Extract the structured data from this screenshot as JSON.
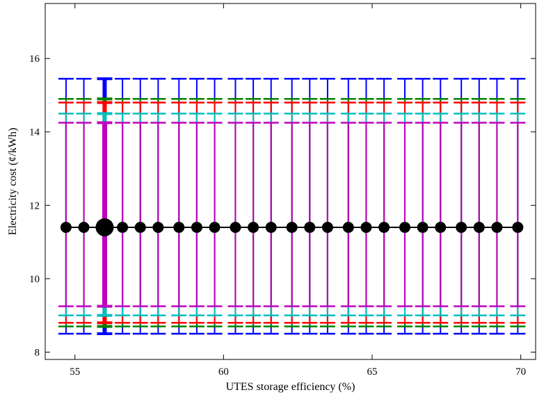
{
  "chart_data": {
    "type": "scatter",
    "title": "",
    "xlabel": "UTES storage efficiency (%)",
    "ylabel": "Electricity cost (¢/kWh)",
    "xlim": [
      54,
      70.5
    ],
    "ylim": [
      7.8,
      17.5
    ],
    "xticks": [
      55,
      60,
      65,
      70
    ],
    "yticks": [
      8,
      10,
      12,
      14,
      16
    ],
    "grid": false,
    "x": [
      54.7,
      55.3,
      56.0,
      56.6,
      57.2,
      57.8,
      58.5,
      59.1,
      59.7,
      60.4,
      61.0,
      61.6,
      62.3,
      62.9,
      63.5,
      64.2,
      64.8,
      65.4,
      66.1,
      66.7,
      67.3,
      68.0,
      68.6,
      69.2,
      69.9
    ],
    "highlight_index": 2,
    "mean": 11.4,
    "bands": [
      {
        "color": "#0000ff",
        "low": 8.5,
        "high": 15.45
      },
      {
        "color": "#008000",
        "low": 8.7,
        "high": 14.9
      },
      {
        "color": "#ff0000",
        "low": 8.8,
        "high": 14.8
      },
      {
        "color": "#00bfbf",
        "low": 9.0,
        "high": 14.5
      },
      {
        "color": "#bf00bf",
        "low": 9.25,
        "high": 14.25
      }
    ],
    "line_color": "#000000",
    "marker_color": "#000000"
  }
}
